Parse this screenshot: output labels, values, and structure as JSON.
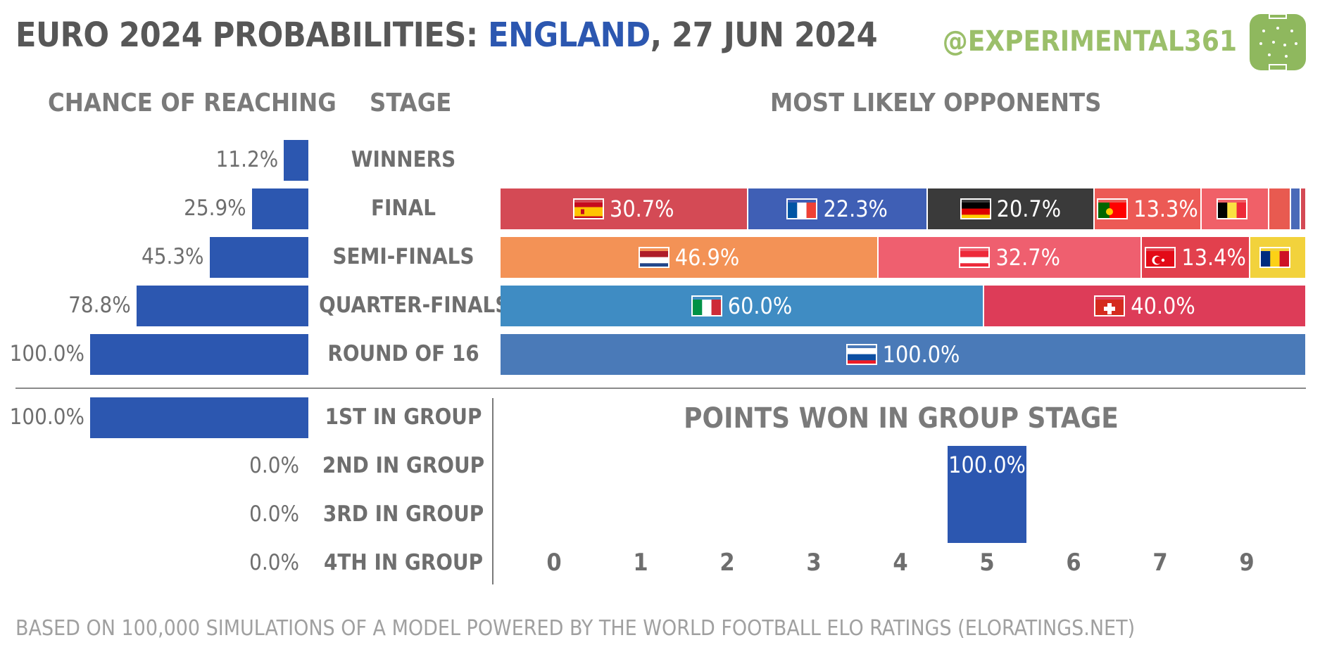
{
  "title": {
    "prefix": "EURO 2024 PROBABILITIES: ",
    "team": "ENGLAND",
    "suffix": ", 27 JUN 2024"
  },
  "handle": "@EXPERIMENTAL361",
  "colors": {
    "accent": "#2c57b0",
    "handle": "#9bbf6a",
    "logo": "#8fb85e"
  },
  "headers": {
    "chance": "CHANCE OF REACHING",
    "stage": "STAGE",
    "opponents": "MOST LIKELY OPPONENTS",
    "points": "POINTS WON IN GROUP STAGE"
  },
  "footer": "BASED ON 100,000 SIMULATIONS OF A MODEL POWERED BY THE WORLD FOOTBALL ELO RATINGS  (ELORATINGS.NET)",
  "chart_data": [
    {
      "type": "bar",
      "categories": [
        "WINNERS",
        "FINAL",
        "SEMI-FINALS",
        "QUARTER-FINALS",
        "ROUND OF 16"
      ],
      "values": [
        11.2,
        25.9,
        45.3,
        78.8,
        100.0
      ],
      "labels": [
        "11.2%",
        "25.9%",
        "45.3%",
        "78.8%",
        "100.0%"
      ]
    },
    {
      "type": "bar",
      "categories": [
        "1ST IN GROUP",
        "2ND IN GROUP",
        "3RD IN GROUP",
        "4TH IN GROUP"
      ],
      "values": [
        100.0,
        0.0,
        0.0,
        0.0
      ],
      "labels": [
        "100.0%",
        "0.0%",
        "0.0%",
        "0.0%"
      ]
    },
    {
      "type": "bar",
      "stacked": true,
      "rows": [
        {
          "stage": "FINAL",
          "segments": [
            {
              "flag": "spain",
              "value": 30.7,
              "label": "30.7%",
              "color": "#d44a55"
            },
            {
              "flag": "france",
              "value": 22.3,
              "label": "22.3%",
              "color": "#3f5fb5"
            },
            {
              "flag": "germany",
              "value": 20.7,
              "label": "20.7%",
              "color": "#3a3a3a"
            },
            {
              "flag": "portugal",
              "value": 13.3,
              "label": "13.3%",
              "color": "#ec5a55"
            },
            {
              "flag": "belgium",
              "value": 8.4,
              "label": "",
              "color": "#f06068"
            },
            {
              "flag": "",
              "value": 2.7,
              "label": "",
              "color": "#e85a50"
            },
            {
              "flag": "",
              "value": 1.2,
              "label": "",
              "color": "#4a6ab8"
            },
            {
              "flag": "",
              "value": 0.7,
              "label": "",
              "color": "#d44a55"
            }
          ]
        },
        {
          "stage": "SEMI-FINALS",
          "segments": [
            {
              "flag": "netherlands",
              "value": 46.9,
              "label": "46.9%",
              "color": "#f39256"
            },
            {
              "flag": "austria",
              "value": 32.7,
              "label": "32.7%",
              "color": "#ef5f6f"
            },
            {
              "flag": "turkey",
              "value": 13.4,
              "label": "13.4%",
              "color": "#e2404d"
            },
            {
              "flag": "romania",
              "value": 7.0,
              "label": "",
              "color": "#f2d23c"
            }
          ]
        },
        {
          "stage": "QUARTER-FINALS",
          "segments": [
            {
              "flag": "italy",
              "value": 60.0,
              "label": "60.0%",
              "color": "#3f8cc3"
            },
            {
              "flag": "switzerland",
              "value": 40.0,
              "label": "40.0%",
              "color": "#dd3c58"
            }
          ]
        },
        {
          "stage": "ROUND OF 16",
          "segments": [
            {
              "flag": "slovakia",
              "value": 100.0,
              "label": "100.0%",
              "color": "#4a7ab8"
            }
          ]
        }
      ]
    },
    {
      "type": "bar",
      "categories": [
        "0",
        "1",
        "2",
        "3",
        "4",
        "5",
        "6",
        "7",
        "9"
      ],
      "values": [
        0,
        0,
        0,
        0,
        0,
        100.0,
        0,
        0,
        0
      ],
      "labels": [
        "",
        "",
        "",
        "",
        "",
        "100.0%",
        "",
        "",
        ""
      ]
    }
  ]
}
